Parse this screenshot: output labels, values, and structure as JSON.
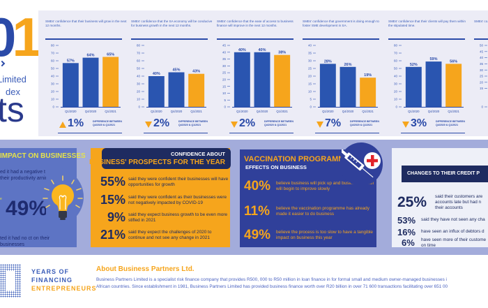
{
  "hero": {
    "number_part_a": "0",
    "number_part_b": "1",
    "subtitle_line1": "Limited",
    "subtitle_line2": "dex",
    "big_word": "ts"
  },
  "chart_data": [
    {
      "type": "bar",
      "title": "SMEs' confidence that their business will grow in the next 12 months.",
      "categories": [
        "Q1/2020",
        "Q4/2020",
        "Q1/2021"
      ],
      "values": [
        57,
        64,
        65
      ],
      "value_labels": [
        "57%",
        "64%",
        "65%"
      ],
      "ylim": [
        0,
        80
      ],
      "yticks": [
        0,
        10,
        20,
        30,
        40,
        50,
        60,
        70,
        80
      ],
      "highlight_index": 2,
      "difference": {
        "direction": "up",
        "value": "1%",
        "label": "DIFFERENCE BETWEEN Q4/2020 & Q1/2021"
      }
    },
    {
      "type": "bar",
      "title": "SMEs' confidence that the SA economy will be conducive for business growth in the next 12 months.",
      "categories": [
        "Q1/2020",
        "Q4/2020",
        "Q1/2021"
      ],
      "values": [
        40,
        45,
        43
      ],
      "value_labels": [
        "40%",
        "45%",
        "43%"
      ],
      "ylim": [
        0,
        80
      ],
      "yticks": [
        0,
        10,
        20,
        30,
        40,
        50,
        60,
        70,
        80
      ],
      "highlight_index": 2,
      "difference": {
        "direction": "down",
        "value": "2%",
        "label": "DIFFERENCE BETWEEN Q4/2020 & Q1/2021"
      }
    },
    {
      "type": "bar",
      "title": "SMEs' confidence that the ease of access to business finance will improve in the next 12 months.",
      "categories": [
        "Q1/2020",
        "Q4/2020",
        "Q1/2021"
      ],
      "values": [
        40,
        40,
        38
      ],
      "value_labels": [
        "40%",
        "40%",
        "38%"
      ],
      "ylim": [
        0,
        45
      ],
      "yticks": [
        0,
        5,
        10,
        15,
        20,
        25,
        30,
        35,
        40,
        45
      ],
      "highlight_index": 2,
      "difference": {
        "direction": "down",
        "value": "2%",
        "label": "DIFFERENCE BETWEEN Q4/2020 & Q1/2021"
      }
    },
    {
      "type": "bar",
      "title": "SMEs' confidence that government is doing enough to foster SME development in SA.",
      "categories": [
        "Q1/2020",
        "Q4/2020",
        "Q1/2021"
      ],
      "values": [
        28,
        26,
        19
      ],
      "value_labels": [
        "28%",
        "26%",
        "19%"
      ],
      "ylim": [
        0,
        40
      ],
      "yticks": [
        0,
        5,
        10,
        15,
        20,
        25,
        30,
        35,
        40
      ],
      "highlight_index": 2,
      "difference": {
        "direction": "down",
        "value": "7%",
        "label": "DIFFERENCE BETWEEN Q4/2020 & Q1/2021"
      }
    },
    {
      "type": "bar",
      "title": "SMEs' confidence that their clients will pay them within the stipulated time.",
      "categories": [
        "Q1/2020",
        "Q4/2020",
        "Q1/2021"
      ],
      "values": [
        52,
        59,
        56
      ],
      "value_labels": [
        "52%",
        "59%",
        "56%"
      ],
      "ylim": [
        0,
        80
      ],
      "yticks": [
        0,
        10,
        20,
        30,
        40,
        50,
        60,
        70,
        80
      ],
      "highlight_index": 2,
      "difference": {
        "direction": "down",
        "value": "3%",
        "label": "DIFFERENCE BETWEEN Q4/2020 & Q1/2021"
      }
    },
    {
      "type": "bar",
      "title": "SMEs' co... is doing",
      "categories": [],
      "values": [],
      "ylim": [
        0,
        50
      ],
      "yticks": [
        0,
        15,
        20,
        25,
        30,
        35,
        40,
        45,
        50
      ],
      "partial": true
    }
  ],
  "colors": {
    "bar_primary": "#2a55b0",
    "bar_highlight": "#f6a51c",
    "navy": "#1e2b60",
    "panel_bg": "#ececf6",
    "band_bg": "#a3acdb"
  },
  "impact": {
    "title": "IMPACT ON BUSINESSES",
    "text1": "ed it had a negative t on their productivity arnings",
    "side_label": "e",
    "big_pct": "49%",
    "text2": "ted it had no ct on their businesses"
  },
  "prospects": {
    "heading_line1": "CONFIDENCE ABOUT",
    "heading_line2": "BUSINESS' PROSPECTS FOR THE YEAR",
    "rows": [
      {
        "pct": "55%",
        "text": "said they were confident their businesses will have opportunities for growth"
      },
      {
        "pct": "15%",
        "text": "said they were confident as their businesses were not negatively impacted by COVID-19"
      },
      {
        "pct": "9%",
        "text": "said they expect business growth to be even more stifled in 2021"
      },
      {
        "pct": "21%",
        "text": "said they expect the challenges of 2020 to continue and not see any change in 2021"
      }
    ]
  },
  "vaccination": {
    "heading_line1": "VACCINATION PROGRAMME",
    "heading_line2": "EFFECTS ON BUSINESS",
    "rows": [
      {
        "pct": "40%",
        "text": "believe business will pick up and business growth will begin to improve slowly"
      },
      {
        "pct": "11%",
        "text": "believe the vaccination programme has already made it easier to do business"
      },
      {
        "pct": "49%",
        "text": "believe the process is too slow to have a tangible impact on business this year"
      }
    ]
  },
  "credit": {
    "heading": "CHANGES TO THEIR CREDIT P",
    "rows": [
      {
        "pct": "25%",
        "text_lines": [
          "said their customers are",
          "accounts late but had n",
          "their accounts"
        ]
      },
      {
        "pct": "53%",
        "text_lines": [
          "said they have not seen any cha"
        ]
      },
      {
        "pct": "16%",
        "text_lines": [
          "have seen an influx of debtors d"
        ]
      },
      {
        "pct": "6%",
        "text_lines": [
          "have seen more of their custome",
          "on time"
        ]
      }
    ]
  },
  "footer": {
    "years_line1": "YEARS OF",
    "years_line2": "FINANCING",
    "years_line3": "ENTREPRENEURS",
    "about_title": "About Business Partners Ltd.",
    "about_line1": "Business Partners Limited is a specialist risk finance company that provides R500, 000 to R50 million in loan finance in for formal small and medium owner-managed businesses i",
    "about_line2": "African countries. Since establishment in 1981, Business Partners Limited has provided business finance worth over R20 billion in over 71 600 transactions facilitating over 651 00"
  }
}
